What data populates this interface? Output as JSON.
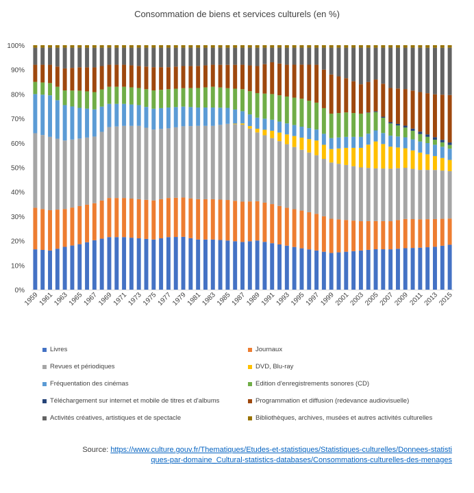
{
  "chart_data": {
    "type": "bar",
    "stacked": true,
    "percent": true,
    "title": "Consommation de biens et services culturels (en %)",
    "xlabel": "",
    "ylabel": "",
    "ylim": [
      0,
      100
    ],
    "yticks": [
      "0%",
      "10%",
      "20%",
      "30%",
      "40%",
      "50%",
      "60%",
      "70%",
      "80%",
      "90%",
      "100%"
    ],
    "xtick_labels": [
      "1959",
      "1961",
      "1963",
      "1965",
      "1967",
      "1969",
      "1971",
      "1973",
      "1975",
      "1977",
      "1979",
      "1981",
      "1983",
      "1985",
      "1987",
      "1989",
      "1991",
      "1993",
      "1995",
      "1997",
      "1999",
      "2001",
      "2003",
      "2005",
      "2007",
      "2009",
      "2011",
      "2013",
      "2015"
    ],
    "grid": false,
    "legend_position": "bottom",
    "series_colors": [
      "#4472c4",
      "#ed7d31",
      "#a5a5a5",
      "#ffc000",
      "#5b9bd5",
      "#70ad47",
      "#264478",
      "#9e480e",
      "#636363",
      "#997300"
    ],
    "series": [
      {
        "name": "Livres",
        "color": "#4472c4",
        "keyframes": {
          "1959": 16.5,
          "1961": 16,
          "1963": 17.5,
          "1965": 18.5,
          "1967": 20,
          "1969": 21.5,
          "1971": 21.5,
          "1973": 21,
          "1975": 20.5,
          "1977": 21.5,
          "1979": 21.5,
          "1981": 20.5,
          "1983": 20.5,
          "1985": 20,
          "1987": 19.5,
          "1989": 20,
          "1991": 19,
          "1993": 18,
          "1995": 17,
          "1997": 16,
          "1999": 15,
          "2001": 15.5,
          "2003": 16,
          "2005": 16.5,
          "2007": 16.5,
          "2009": 17,
          "2011": 17,
          "2013": 17,
          "2015": 18
        }
      },
      {
        "name": "Journaux",
        "color": "#ed7d31",
        "keyframes": {
          "1959": 17,
          "1961": 16.5,
          "1963": 15.5,
          "1965": 15.5,
          "1967": 15,
          "1969": 16,
          "1971": 16,
          "1973": 16,
          "1975": 16,
          "1977": 16,
          "1979": 16,
          "1981": 16.5,
          "1983": 16.5,
          "1985": 16.5,
          "1987": 16.5,
          "1989": 16,
          "1991": 16,
          "1993": 15.5,
          "1995": 15.5,
          "1997": 15,
          "1999": 14,
          "2001": 13,
          "2003": 12,
          "2005": 11.5,
          "2007": 11.5,
          "2009": 12,
          "2011": 11.5,
          "2013": 11,
          "2015": 10.5
        }
      },
      {
        "name": "Revues et périodiques",
        "color": "#a5a5a5",
        "keyframes": {
          "1959": 30.5,
          "1961": 30,
          "1963": 28,
          "1965": 27.5,
          "1967": 27,
          "1969": 29,
          "1971": 29.5,
          "1973": 30,
          "1975": 29,
          "1977": 28.5,
          "1979": 29,
          "1981": 30,
          "1983": 30,
          "1985": 31,
          "1987": 31.5,
          "1989": 28,
          "1991": 27,
          "1993": 26,
          "1995": 25,
          "1997": 24,
          "1999": 23,
          "2001": 22.5,
          "2003": 22,
          "2005": 21.5,
          "2007": 21.5,
          "2009": 21,
          "2011": 20,
          "2013": 19.5,
          "2015": 19
        }
      },
      {
        "name": "DVD, Blu-ray",
        "color": "#ffc000",
        "keyframes": {
          "1959": 0,
          "1983": 0,
          "1985": 0,
          "1987": 0.5,
          "1989": 1.5,
          "1991": 3,
          "1993": 4,
          "1995": 5,
          "1997": 6,
          "1999": 5.5,
          "2001": 7,
          "2003": 8,
          "2005": 11,
          "2007": 9,
          "2009": 8,
          "2011": 7,
          "2013": 5.5,
          "2015": 4.5
        }
      },
      {
        "name": "Fréquentation des cinémas",
        "color": "#5b9bd5",
        "keyframes": {
          "1959": 16,
          "1961": 17,
          "1963": 14.5,
          "1965": 12.5,
          "1967": 11,
          "1969": 9.5,
          "1971": 9,
          "1973": 8.5,
          "1975": 8.5,
          "1977": 8.5,
          "1979": 8,
          "1981": 7.5,
          "1983": 7.5,
          "1985": 6.5,
          "1987": 5,
          "1989": 4.5,
          "1991": 4.5,
          "1993": 4.5,
          "1995": 4.5,
          "1997": 4.5,
          "1999": 4.5,
          "2001": 4.5,
          "2003": 4.5,
          "2005": 4.5,
          "2007": 4.5,
          "2009": 4.5,
          "2011": 4.5,
          "2013": 4.5,
          "2015": 4.5
        }
      },
      {
        "name": "Edition d'enregistrements sonores (CD)",
        "color": "#70ad47",
        "keyframes": {
          "1959": 5,
          "1961": 5,
          "1963": 6,
          "1965": 7,
          "1967": 7,
          "1969": 7,
          "1971": 7,
          "1973": 7,
          "1975": 7.5,
          "1977": 7.5,
          "1979": 7.5,
          "1981": 8,
          "1983": 8.5,
          "1985": 8,
          "1987": 9,
          "1989": 10,
          "1991": 10.5,
          "1993": 11,
          "1995": 11.5,
          "1997": 11,
          "1999": 10,
          "2001": 10,
          "2003": 9.5,
          "2005": 7.5,
          "2007": 5,
          "2009": 4,
          "2011": 3,
          "2013": 2,
          "2015": 1.5
        }
      },
      {
        "name": "Téléchargement sur internet et mobile de titres et d'albums",
        "color": "#264478",
        "keyframes": {
          "1959": 0,
          "2003": 0,
          "2005": 0.3,
          "2007": 0.5,
          "2009": 0.8,
          "2011": 1,
          "2013": 1,
          "2015": 1
        }
      },
      {
        "name": "Programmation et diffusion (redevance audiovisuelle)",
        "color": "#9e480e",
        "keyframes": {
          "1959": 7,
          "1961": 7.5,
          "1963": 9,
          "1965": 9.5,
          "1967": 10,
          "1969": 9,
          "1971": 9,
          "1973": 9,
          "1975": 9.5,
          "1977": 9,
          "1979": 9,
          "1981": 9,
          "1983": 9,
          "1985": 9.5,
          "1987": 10,
          "1989": 11,
          "1991": 13,
          "1993": 13,
          "1995": 14,
          "1997": 15.5,
          "1999": 16,
          "2001": 14,
          "2003": 12,
          "2005": 13,
          "2007": 14,
          "2009": 15,
          "2011": 16,
          "2013": 17,
          "2015": 19
        }
      },
      {
        "name": "Activités créatives, artistiques et de spectacle",
        "color": "#636363",
        "keyframes": {
          "1959": 7,
          "1961": 7,
          "1963": 8.5,
          "1965": 8,
          "1967": 8,
          "1969": 7,
          "1971": 7,
          "1973": 7.5,
          "1975": 8,
          "1977": 8,
          "1979": 7.5,
          "1981": 7.5,
          "1983": 7,
          "1985": 7,
          "1987": 7,
          "1989": 7.5,
          "1991": 6,
          "1993": 7,
          "1995": 7,
          "1997": 7,
          "1999": 11,
          "2001": 12.5,
          "2003": 15,
          "2005": 13,
          "2007": 16.5,
          "2009": 17,
          "2011": 18,
          "2013": 18.5,
          "2015": 19
        }
      },
      {
        "name": "Bibliothèques, archives, musées et autres activités culturelles",
        "color": "#997300",
        "keyframes": {
          "1959": 1,
          "2015": 1
        }
      }
    ]
  },
  "legend": [
    {
      "label": "Livres",
      "color": "#4472c4"
    },
    {
      "label": "Journaux",
      "color": "#ed7d31"
    },
    {
      "label": "Revues et périodiques",
      "color": "#a5a5a5"
    },
    {
      "label": "DVD, Blu-ray",
      "color": "#ffc000"
    },
    {
      "label": "Fréquentation des cinémas",
      "color": "#5b9bd5"
    },
    {
      "label": "Edition d'enregistrements sonores (CD)",
      "color": "#70ad47"
    },
    {
      "label": "Téléchargement sur internet et mobile de titres et d'albums",
      "color": "#264478"
    },
    {
      "label": "Programmation et diffusion (redevance audiovisuelle)",
      "color": "#9e480e"
    },
    {
      "label": "Activités créatives, artistiques et de spectacle",
      "color": "#636363"
    },
    {
      "label": "Bibliothèques, archives, musées et autres activités culturelles",
      "color": "#997300"
    }
  ],
  "source": {
    "prefix": "Source: ",
    "url": "https://www.culture.gouv.fr/Thematiques/Etudes-et-statistiques/Statistiques-culturelles/Donnees-statistiques-par-domaine_Cultural-statistics-databases/Consommations-culturelles-des-menages"
  }
}
